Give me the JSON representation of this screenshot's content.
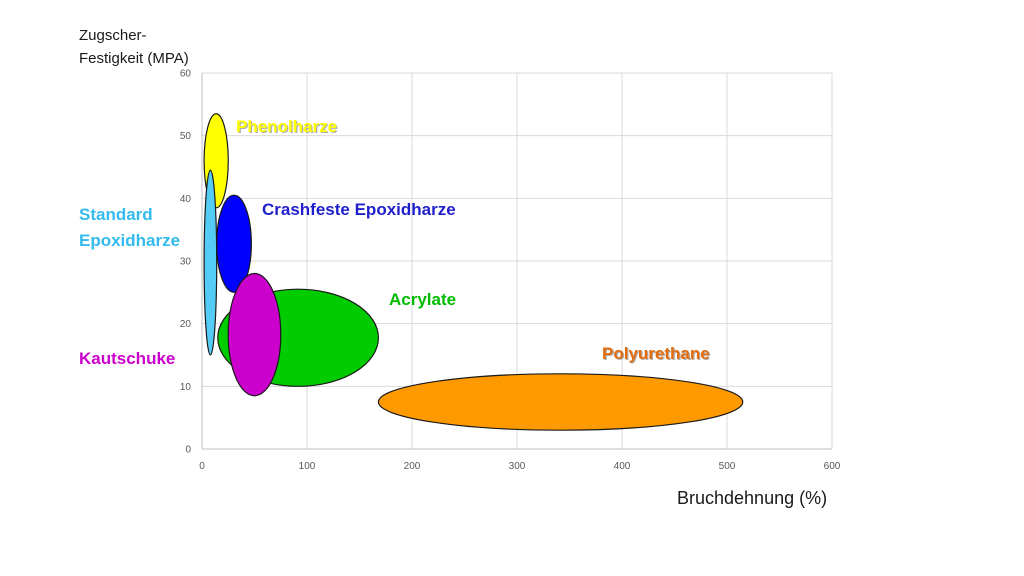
{
  "chart_data": {
    "type": "bubble-regions",
    "title": "",
    "ylabel_lines": [
      "Zugscher-",
      "Festigkeit (MPA)"
    ],
    "xlabel": "Bruchdehnung (%)",
    "xlim": [
      0,
      600
    ],
    "ylim": [
      0,
      60
    ],
    "x_ticks": [
      "0",
      "100",
      "200",
      "300",
      "400",
      "500",
      "600"
    ],
    "y_ticks": [
      "0",
      "10",
      "20",
      "30",
      "40",
      "50",
      "60"
    ],
    "grid": true,
    "regions": [
      {
        "name": "Acrylate",
        "x": [
          15,
          168
        ],
        "y": [
          10,
          25.5
        ],
        "color": "#00CC00",
        "label_color": "#00BB00"
      },
      {
        "name": "Polyurethane",
        "x": [
          168,
          515
        ],
        "y": [
          3,
          12
        ],
        "color": "#FF9900",
        "label_color": "#E46C0A"
      },
      {
        "name": "Phenolharze",
        "x": [
          2,
          25
        ],
        "y": [
          38.5,
          53.5
        ],
        "color": "#FFFF00",
        "label_color": "#FFFF00"
      },
      {
        "name": "Crashfeste Epoxidharze",
        "x": [
          14,
          47
        ],
        "y": [
          25,
          40.5
        ],
        "color": "#0000FF",
        "label_color": "#1F1FCC"
      },
      {
        "name": "Kautschuke",
        "x": [
          25,
          75
        ],
        "y": [
          8.5,
          28
        ],
        "color": "#CC00CC",
        "label_color": "#CC00CC"
      },
      {
        "name": "Standard Epoxidharze",
        "label_lines": [
          "Standard",
          "Epoxidharze"
        ],
        "x": [
          2,
          14
        ],
        "y": [
          15,
          44.5
        ],
        "color": "#55CCF5",
        "label_color": "#33BBEE"
      }
    ]
  }
}
